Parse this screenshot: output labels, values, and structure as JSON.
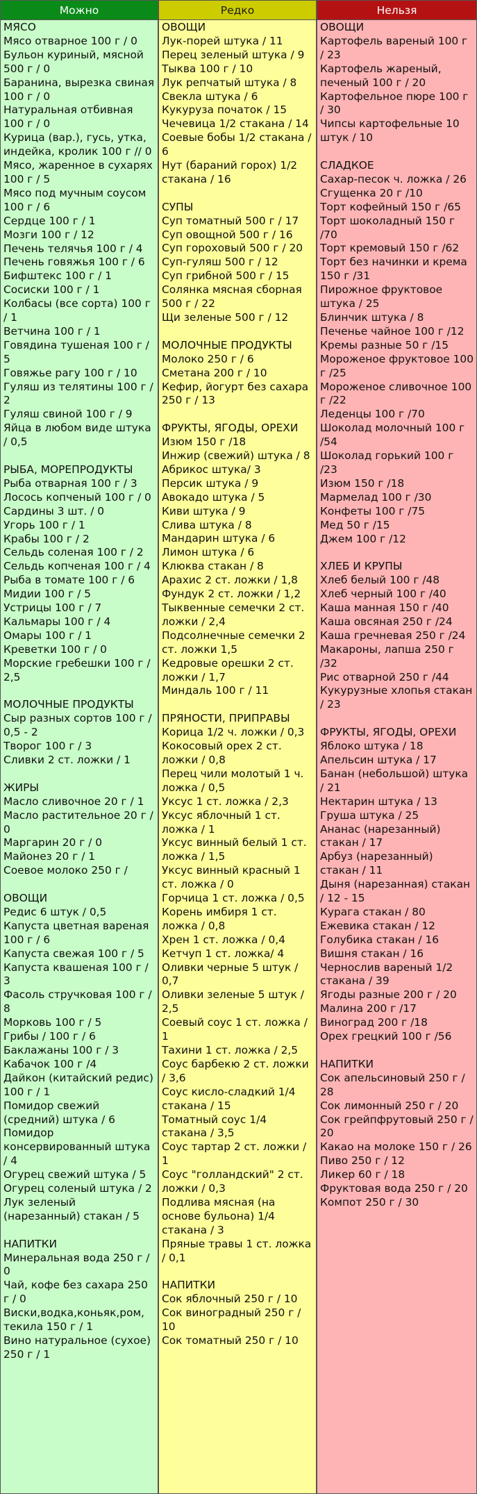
{
  "columns": [
    {
      "title": "Можно",
      "sections": [
        {
          "title": "МЯСО",
          "items": [
            "Мясо отварное 100 г / 0",
            "Бульон куриный, мясной 500 г / 0",
            "Баранина, вырезка свиная 100 г / 0",
            "Натуральная отбивная 100 г / 0",
            "Курица (вар.), гусь, утка, индейка, кролик 100 г // 0",
            "Мясо, жаренное в сухарях 100 г / 5",
            "Мясо под мучным соусом 100 г / 6",
            "Сердце 100 г / 1",
            "Мозги 100 г / 12",
            "Печень телячья 100 г / 4",
            "Печень говяжья 100 г / 6",
            "Бифштекс 100 г / 1",
            "Сосиски 100 г / 1",
            "Колбасы (все сорта) 100 г / 1",
            "Ветчина 100 г / 1",
            "Говядина тушеная 100 г / 5",
            "Говяжье рагу 100 г / 10",
            "Гуляш из телятины 100 г / 2",
            "Гуляш свиной 100 г / 9",
            "Яйца в любом виде штука / 0,5"
          ]
        },
        {
          "title": "РЫБА, МОРЕПРОДУКТЫ",
          "items": [
            "Рыба отварная 100 г / 3",
            "Лосось копченый 100 г / 0",
            "Сардины 3 шт. / 0",
            "Угорь 100 г / 1",
            "Крабы 100 г / 2",
            "Сельдь соленая 100 г / 2",
            "Сельдь копченая 100 г / 4",
            "Рыба в томате 100 г / 6",
            "Мидии 100 г / 5",
            "Устрицы 100 г / 7",
            "Кальмары 100 г / 4",
            "Омары 100 г / 1",
            "Креветки 100 г / 0",
            "Морские гребешки 100 г / 2,5"
          ]
        },
        {
          "title": "МОЛОЧНЫЕ ПРОДУКТЫ",
          "items": [
            "Сыр разных сортов 100 г / 0,5 - 2",
            "Творог 100 г / 3",
            "Сливки 2 ст. ложки / 1"
          ]
        },
        {
          "title": "ЖИРЫ",
          "items": [
            "Масло сливочное 20 г / 1",
            "Масло растительное 20 г / 0",
            "Маргарин 20 г / 0",
            "Майонез 20 г / 1",
            "Соевое молоко 250 г /"
          ]
        },
        {
          "title": "ОВОЩИ",
          "items": [
            "Редис 6 штук / 0,5",
            "Капуста цветная вареная 100 г / 6",
            "Капуста свежая 100 г / 5",
            "Капуста квашеная 100 г / 3",
            "Фасоль стручковая 100 г / 8",
            "Морковь 100 г / 5",
            "Грибы / 100 г / 6",
            "Баклажаны 100 г / 3",
            "Кабачок 100 г /4",
            "Дайкон (китайский редис) 100 г / 1",
            "Помидор свежий (средний) штука / 6",
            "Помидор консервированный штука / 4",
            "Огурец свежий штука / 5",
            "Огурец соленый штука / 2",
            "Лук зеленый (нарезанный) стакан / 5"
          ]
        },
        {
          "title": "НАПИТКИ",
          "items": [
            "Минеральная вода 250 г / 0",
            "Чай, кофе без сахара 250 г / 0",
            "Виски,водка,коньяк,ром, текила 150 г / 1",
            "Вино натуральное (сухое) 250 г / 1"
          ]
        }
      ]
    },
    {
      "title": "Редко",
      "sections": [
        {
          "title": "ОВОЩИ",
          "items": [
            "Лук-порей штука / 11",
            "Перец зеленый штука / 9",
            "Тыква 100 г / 10",
            "Лук репчатый штука / 8",
            "Свекла штука / 6",
            "Кукуруза початок / 15",
            "Чечевица 1/2 стакана / 14",
            "Соевые бобы 1/2 стакана / 6",
            "Нут (бараний горох) 1/2 стакана / 16"
          ]
        },
        {
          "title": "СУПЫ",
          "items": [
            "Суп томатный 500 г / 17",
            "Суп овощной 500 г / 16",
            "Суп гороховый 500 г / 20",
            "Суп-гуляш 500 г / 12",
            "Суп грибной 500 г / 15",
            "Солянка мясная сборная 500 г / 22",
            "Щи зеленые 500 г / 12"
          ]
        },
        {
          "title": "МОЛОЧНЫЕ ПРОДУКТЫ",
          "items": [
            "Молоко 250 г / 6",
            "Сметана 200 г / 10",
            "Кефир, йогурт без сахара 250 г / 13"
          ]
        },
        {
          "title": "ФРУКТЫ, ЯГОДЫ, ОРЕХИ",
          "items": [
            "Изюм 150 г /18",
            "Инжир (свежий) штука / 8",
            "Абрикос штука/ 3",
            "Персик штука / 9",
            "Авокадо штука / 5",
            "Киви штука / 9",
            "Слива штука / 8",
            "Мандарин штука / 6",
            "Лимон штука / 6",
            "Клюква стакан / 8",
            "Арахис 2 ст. ложки / 1,8",
            "Фундук 2 ст. ложки / 1,2",
            "Тыквенные семечки 2 ст. ложки / 2,4",
            "Подсолнечные семечки 2 ст. ложки 1,5",
            "Кедровые орешки 2 ст. ложки / 1,7",
            "Миндаль 100 г / 11"
          ]
        },
        {
          "title": "ПРЯНОСТИ, ПРИПРАВЫ",
          "items": [
            "Корица 1/2 ч. ложки / 0,3",
            "Кокосовый орех 2 ст. ложки / 0,8",
            "Перец чили молотый 1 ч. ложка / 0,5",
            "Уксус 1 ст. ложка / 2,3",
            "Уксус яблочный 1 ст. ложка / 1",
            "Уксус винный белый 1 ст. ложка / 1,5",
            "Уксус винный красный 1 ст. ложка / 0",
            "Горчица 1 ст. ложка / 0,5",
            "Корень имбиря 1 ст. ложка / 0,8",
            "Хрен 1 ст. ложка / 0,4",
            "Кетчуп 1 ст. ложка/ 4",
            "Оливки черные 5 штук / 0,7",
            "Оливки зеленые 5 штук / 2,5",
            "Соевый соус 1 ст. ложка / 1",
            "Тахини 1 ст. ложка / 2,5",
            "Соус барбекю 2 ст. ложки / 3,6",
            "Соус кисло-сладкий 1/4 стакана / 15",
            "Томатный соус 1/4 стакана / 3,5",
            "Соус тартар 2 ст. ложки / 1",
            "Соус \"голландский\" 2 ст. ложки / 0,3",
            "Подлива мясная (на основе бульона) 1/4 стакана / 3",
            "Пряные травы 1 ст. ложка / 0,1"
          ]
        },
        {
          "title": "НАПИТКИ",
          "items": [
            "Сок яблочный 250 г / 10",
            "Сок виноградный 250 г / 10",
            "Сок томатный 250 г / 10"
          ]
        }
      ]
    },
    {
      "title": "Нельзя",
      "sections": [
        {
          "title": "ОВОЩИ",
          "items": [
            "Картофель вареный 100 г / 23",
            "Картофель жареный, печеный 100 г / 20",
            "Картофельное пюре 100 г / 30",
            "Чипсы картофельные 10 штук / 10"
          ]
        },
        {
          "title": "СЛАДКОЕ",
          "items": [
            "Сахар-песок ч. ложка / 26",
            "Сгущенка 20 г /10",
            "Торт кофейный 150 г /65",
            "Торт шоколадный 150 г /70",
            "Торт кремовый 150 г /62",
            "Торт без начинки и крема 150 г /31",
            "Пирожное фруктовое штука / 25",
            "Блинчик штука / 8",
            "Печенье чайное 100 г /12",
            "Кремы разные 50 г /15",
            "Мороженое фруктовое 100 г /25",
            "Мороженое сливочное 100 г /22",
            "Леденцы 100 г /70",
            "Шоколад молочный 100 г /54",
            "Шоколад горький 100 г /23",
            "Изюм 150 г /18",
            "Мармелад 100 г /30",
            "Конфеты 100 г /75",
            "Мед 50 г /15",
            "Джем 100 г /12"
          ]
        },
        {
          "title": "ХЛЕБ И КРУПЫ",
          "items": [
            "Хлеб белый 100 г /48",
            "Хлеб черный 100 г /40",
            "Каша манная 150 г /40",
            "Каша овсяная 250 г /24",
            "Каша гречневая 250 г /24",
            "Макароны, лапша 250 г /32",
            "Рис отварной 250 г /44",
            "Кукурузные хлопья стакан / 23"
          ]
        },
        {
          "title": "ФРУКТЫ, ЯГОДЫ, ОРЕХИ",
          "items": [
            "Яблоко штука / 18",
            "Апельсин штука / 17",
            "Банан (небольшой) штука / 21",
            "Нектарин штука / 13",
            "Груша штука / 25",
            "Ананас (нарезанный) стакан / 17",
            "Арбуз (нарезанный) стакан / 11",
            "Дыня (нарезанная) стакан / 12 - 15",
            "Курага стакан / 80",
            "Ежевика стакан / 12",
            "Голубика стакан / 16",
            "Вишня стакан / 16",
            "Чернослив вареный 1/2 стакана / 39",
            "Ягоды разные 200 г / 20",
            "Малина 200 г /17",
            "Виноград 200 г /18",
            "Орех грецкий 100 г /56"
          ]
        },
        {
          "title": "НАПИТКИ",
          "items": [
            "Сок апельсиновый 250 г / 28",
            "Сок лимонный 250 г / 20",
            "Сок грейпфрутовый 250 г / 20",
            "Какао на молоке 150 г / 26",
            "Пиво 250 г / 12",
            "Ликер 60 г / 18",
            "Фруктовая вода 250 г / 20",
            "Компот 250 г / 30"
          ]
        }
      ]
    }
  ]
}
